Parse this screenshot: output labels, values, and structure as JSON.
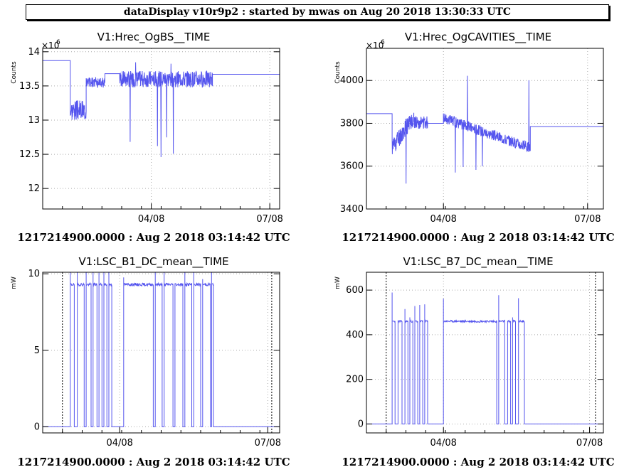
{
  "header": {
    "title": "dataDisplay v10r9p2 : started by mwas on Aug 20 2018 13:30:33 UTC"
  },
  "line_color": "#5555ee",
  "chart_data": [
    {
      "type": "line",
      "title": "V1:Hrec_OgBS__TIME",
      "ylabel": "Counts",
      "exponent": "×10^6",
      "exponent_base": "×10",
      "exponent_power": "6",
      "xlim": [
        0,
        12
      ],
      "ylim": [
        11.7,
        14.05
      ],
      "yticks": [
        12,
        12.5,
        13,
        13.5,
        14
      ],
      "ytick_labels": [
        "12",
        "12.5",
        "13",
        "13.5",
        "14"
      ],
      "xticks": [
        5.5,
        11.5
      ],
      "xtick_labels": [
        "04/08",
        "07/08"
      ],
      "dotted_verticals": [],
      "footer": "1217214900.0000 : Aug  2 2018 03:14:42 UTC",
      "segments": [
        {
          "type": "flat",
          "x0": 0,
          "x1": 1.4,
          "y": 13.87
        },
        {
          "type": "noise",
          "x0": 1.4,
          "x1": 2.2,
          "base": 13.15,
          "amp": 0.15,
          "lo": 11.9,
          "hi": 13.75,
          "seed": 3
        },
        {
          "type": "noise",
          "x0": 2.2,
          "x1": 3.15,
          "base": 13.55,
          "amp": 0.08,
          "lo": 13.05,
          "hi": 13.8,
          "seed": 5
        },
        {
          "type": "flat",
          "x0": 3.15,
          "x1": 3.9,
          "y": 13.68
        },
        {
          "type": "noise",
          "x0": 3.9,
          "x1": 8.6,
          "base": 13.6,
          "amp": 0.12,
          "lo": 12.4,
          "hi": 13.9,
          "seed": 7
        },
        {
          "type": "flat",
          "x0": 8.6,
          "x1": 12,
          "y": 13.67
        }
      ]
    },
    {
      "type": "line",
      "title": "V1:Hrec_OgCAVITIES__TIME",
      "ylabel": "Counts",
      "exponent": "×10^6",
      "exponent_base": "×10",
      "exponent_power": "6",
      "xlim": [
        0,
        12
      ],
      "ylim": [
        3400,
        4150
      ],
      "yticks": [
        3400,
        3600,
        3800,
        4000
      ],
      "ytick_labels": [
        "3400",
        "3600",
        "3800",
        "4000"
      ],
      "xticks": [
        3.9,
        11.2
      ],
      "xtick_labels": [
        "04/08",
        "07/08"
      ],
      "dotted_verticals": [],
      "footer": "1217214900.0000 : Aug  2 2018 03:14:42 UTC",
      "segments": [
        {
          "type": "flat",
          "x0": 0,
          "x1": 1.3,
          "y": 3845
        },
        {
          "type": "noise",
          "x0": 1.3,
          "x1": 2.4,
          "base": 3690,
          "amp": 45,
          "lo": 3460,
          "hi": 4090,
          "seed": 11,
          "trend": 140
        },
        {
          "type": "noise",
          "x0": 2.4,
          "x1": 3.1,
          "base": 3805,
          "amp": 30,
          "lo": 3650,
          "hi": 3880,
          "seed": 13
        },
        {
          "type": "flat",
          "x0": 3.1,
          "x1": 3.9,
          "y": 3800
        },
        {
          "type": "noise",
          "x0": 3.9,
          "x1": 8.3,
          "base": 3825,
          "amp": 25,
          "lo": 3550,
          "hi": 4060,
          "seed": 17,
          "trend": -140
        },
        {
          "type": "flat",
          "x0": 8.3,
          "x1": 12,
          "y": 3785
        }
      ]
    },
    {
      "type": "line",
      "title": "V1:LSC_B1_DC_mean__TIME",
      "ylabel": "mW",
      "exponent": "",
      "exponent_base": "",
      "exponent_power": "",
      "xlim": [
        0,
        12
      ],
      "ylim": [
        -0.4,
        10.1
      ],
      "yticks": [
        0,
        5,
        10
      ],
      "ytick_labels": [
        "0",
        "5",
        "10"
      ],
      "xticks": [
        3.9,
        11.4
      ],
      "xtick_labels": [
        "04/08",
        "07/08"
      ],
      "dotted_verticals": [
        1,
        11.6
      ],
      "footer": "1217214900.0000 : Aug  2 2018 03:14:42 UTC",
      "segments": [
        {
          "type": "flat",
          "x0": 0,
          "x1": 1.4,
          "y": 0
        },
        {
          "type": "pulses",
          "y0": 0,
          "y1": 9.3,
          "edges": [
            1.4,
            1.6,
            1.75,
            2.1,
            2.2,
            2.45,
            2.55,
            2.75,
            2.85,
            3.0,
            3.1,
            3.25,
            3.35,
            3.5,
            4.1,
            5.6,
            5.7,
            6.05,
            6.15,
            6.6,
            6.7,
            7.1,
            7.2,
            7.55,
            7.65,
            8.0,
            8.1,
            8.5,
            8.55,
            8.65
          ],
          "seed": 19
        },
        {
          "type": "flat",
          "x0": 8.65,
          "x1": 12,
          "y": 0
        }
      ]
    },
    {
      "type": "line",
      "title": "V1:LSC_B7_DC_mean__TIME",
      "ylabel": "mW",
      "exponent": "",
      "exponent_base": "",
      "exponent_power": "",
      "xlim": [
        0,
        12
      ],
      "ylim": [
        -40,
        680
      ],
      "yticks": [
        0,
        200,
        400,
        600
      ],
      "ytick_labels": [
        "0",
        "200",
        "400",
        "600"
      ],
      "xticks": [
        3.9,
        11.3
      ],
      "xtick_labels": [
        "04/08",
        "07/08"
      ],
      "dotted_verticals": [
        1,
        11.6
      ],
      "footer": "1217214900.0000 : Aug  2 2018 03:14:42 UTC",
      "segments": [
        {
          "type": "flat",
          "x0": 0,
          "x1": 1.3,
          "y": 0
        },
        {
          "type": "pulses",
          "y0": 0,
          "y1": 460,
          "edges": [
            1.3,
            1.45,
            1.6,
            1.8,
            1.95,
            2.1,
            2.2,
            2.35,
            2.45,
            2.6,
            2.7,
            2.85,
            2.95,
            3.1,
            3.9,
            6.6,
            6.7,
            7.0,
            7.15,
            7.3,
            7.4,
            7.55,
            7.7,
            8.0
          ],
          "seed": 23
        },
        {
          "type": "flat",
          "x0": 8.0,
          "x1": 12,
          "y": 0
        }
      ]
    }
  ]
}
